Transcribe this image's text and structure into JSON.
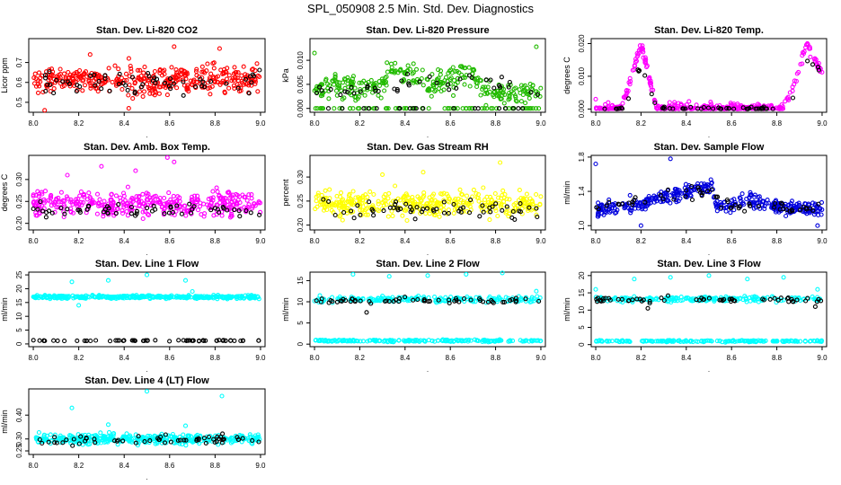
{
  "title": "SPL_050908  2.5 Min. Std. Dev. Diagnostics",
  "colors": {
    "red": "#ff0000",
    "green": "#22bb00",
    "magenta": "#ff00ff",
    "yellow": "#ffff00",
    "blue": "#0000dd",
    "cyan": "#00ffff",
    "black": "#000000"
  },
  "chart_data": [
    {
      "type": "scatter",
      "title": "Stan. Dev. Li-820 CO2",
      "ylabel": "Licor ppm",
      "xlabel": ".",
      "xlim": [
        7.98,
        9.02
      ],
      "ylim": [
        0.45,
        0.82
      ],
      "xticks": [
        "8.0",
        "8.2",
        "8.4",
        "8.6",
        "8.8",
        "9.0"
      ],
      "yticks": [
        {
          "v": 0.5,
          "label": "0.5"
        },
        {
          "v": 0.6,
          "label": "0.6"
        },
        {
          "v": 0.7,
          "label": "0.7"
        }
      ],
      "series": [
        {
          "name": "main",
          "color": "red",
          "pattern": "noise",
          "bands": [
            {
              "from": 0,
              "to": 1,
              "y": 0.61,
              "sd": 0.055
            }
          ],
          "outliers": [
            [
              8.05,
              0.46
            ],
            [
              8.42,
              0.47
            ],
            [
              8.62,
              0.78
            ],
            [
              8.82,
              0.77
            ],
            [
              8.25,
              0.74
            ]
          ]
        },
        {
          "name": "overlay",
          "color": "black",
          "pattern": "noise",
          "bands": [
            {
              "from": 0,
              "to": 1,
              "y": 0.6,
              "sd": 0.04
            }
          ]
        }
      ]
    },
    {
      "type": "scatter",
      "title": "Stan. Dev. Li-820 Pressure",
      "ylabel": "kPa",
      "xlabel": ".",
      "xlim": [
        7.98,
        9.02
      ],
      "ylim": [
        -0.0008,
        0.0145
      ],
      "xticks": [
        "8.0",
        "8.2",
        "8.4",
        "8.6",
        "8.8",
        "9.0"
      ],
      "yticks": [
        {
          "v": 0.0,
          "label": "0.000"
        },
        {
          "v": 0.005,
          "label": "0.005"
        },
        {
          "v": 0.01,
          "label": "0.010"
        }
      ],
      "series": [
        {
          "name": "main",
          "color": "green",
          "pattern": "profile",
          "profile": [
            [
              8.0,
              0.004
            ],
            [
              8.1,
              0.005
            ],
            [
              8.2,
              0.004
            ],
            [
              8.3,
              0.005
            ],
            [
              8.35,
              0.008
            ],
            [
              8.42,
              0.007
            ],
            [
              8.5,
              0.005
            ],
            [
              8.6,
              0.006
            ],
            [
              8.67,
              0.008
            ],
            [
              8.75,
              0.004
            ],
            [
              8.85,
              0.003
            ],
            [
              9.0,
              0.004
            ]
          ],
          "sd": 0.0018,
          "zerofrac": 0.18,
          "outliers": [
            [
              8.0,
              0.0115
            ],
            [
              8.32,
              0.0095
            ],
            [
              8.98,
              0.0128
            ]
          ]
        },
        {
          "name": "overlay",
          "color": "black",
          "pattern": "profile",
          "profile": [
            [
              8.0,
              0.004
            ],
            [
              8.3,
              0.004
            ],
            [
              8.42,
              0.006
            ],
            [
              8.6,
              0.004
            ],
            [
              8.68,
              0.007
            ],
            [
              9.0,
              0.003
            ]
          ],
          "sd": 0.0012,
          "zerofrac": 0.25
        }
      ]
    },
    {
      "type": "scatter",
      "title": "Stan. Dev. Li-820 Temp.",
      "ylabel": "degrees C",
      "xlabel": ".",
      "xlim": [
        7.98,
        9.02
      ],
      "ylim": [
        -0.001,
        0.0215
      ],
      "xticks": [
        "8.0",
        "8.2",
        "8.4",
        "8.6",
        "8.8",
        "9.0"
      ],
      "yticks": [
        {
          "v": 0.0,
          "label": "0.000"
        },
        {
          "v": 0.01,
          "label": "0.010"
        },
        {
          "v": 0.02,
          "label": "0.020"
        }
      ],
      "series": [
        {
          "name": "main",
          "color": "magenta",
          "pattern": "profile",
          "profile": [
            [
              8.0,
              0.0
            ],
            [
              8.1,
              0.0
            ],
            [
              8.13,
              0.003
            ],
            [
              8.2,
              0.02
            ],
            [
              8.27,
              0.0
            ],
            [
              8.83,
              0.0
            ],
            [
              8.88,
              0.008
            ],
            [
              8.93,
              0.02
            ],
            [
              9.0,
              0.011
            ]
          ],
          "sd": 0.0012,
          "outliers": [
            [
              8.0,
              0.003
            ]
          ]
        },
        {
          "name": "overlay",
          "color": "black",
          "pattern": "profile",
          "profile": [
            [
              8.0,
              0.0
            ],
            [
              8.13,
              0.0
            ],
            [
              8.18,
              0.012
            ],
            [
              8.22,
              0.01
            ],
            [
              8.27,
              0.0
            ],
            [
              8.86,
              0.0
            ],
            [
              8.92,
              0.016
            ],
            [
              9.0,
              0.011
            ]
          ],
          "sd": 0.0008
        }
      ]
    },
    {
      "type": "scatter",
      "title": "Stan. Dev. Amb. Box Temp.",
      "ylabel": "degrees C",
      "xlabel": ".",
      "xlim": [
        7.98,
        9.02
      ],
      "ylim": [
        0.185,
        0.355
      ],
      "xticks": [
        "8.0",
        "8.2",
        "8.4",
        "8.6",
        "8.8",
        "9.0"
      ],
      "yticks": [
        {
          "v": 0.2,
          "label": "0.20"
        },
        {
          "v": 0.25,
          "label": "0.25"
        },
        {
          "v": 0.3,
          "label": "0.30"
        }
      ],
      "series": [
        {
          "name": "main",
          "color": "magenta",
          "pattern": "noise",
          "bands": [
            {
              "from": 0,
              "to": 1,
              "y": 0.245,
              "sd": 0.022
            }
          ],
          "outliers": [
            [
              8.3,
              0.33
            ],
            [
              8.59,
              0.35
            ],
            [
              8.45,
              0.32
            ],
            [
              8.62,
              0.34
            ],
            [
              8.15,
              0.31
            ]
          ]
        },
        {
          "name": "overlay",
          "color": "black",
          "pattern": "noise",
          "bands": [
            {
              "from": 0,
              "to": 1,
              "y": 0.23,
              "sd": 0.012
            }
          ]
        }
      ]
    },
    {
      "type": "scatter",
      "title": "Stan. Dev. Gas Stream RH",
      "ylabel": "percent",
      "xlabel": ".",
      "xlim": [
        7.98,
        9.02
      ],
      "ylim": [
        0.19,
        0.345
      ],
      "xticks": [
        "8.0",
        "8.2",
        "8.4",
        "8.6",
        "8.8",
        "9.0"
      ],
      "yticks": [
        {
          "v": 0.2,
          "label": "0.20"
        },
        {
          "v": 0.25,
          "label": "0.25"
        },
        {
          "v": 0.3,
          "label": "0.30"
        }
      ],
      "series": [
        {
          "name": "main",
          "color": "yellow",
          "pattern": "noise",
          "bands": [
            {
              "from": 0,
              "to": 1,
              "y": 0.245,
              "sd": 0.02
            }
          ],
          "outliers": [
            [
              8.82,
              0.33
            ],
            [
              8.48,
              0.31
            ],
            [
              8.3,
              0.305
            ]
          ]
        },
        {
          "name": "overlay",
          "color": "black",
          "pattern": "noise",
          "bands": [
            {
              "from": 0,
              "to": 1,
              "y": 0.235,
              "sd": 0.014
            }
          ]
        }
      ]
    },
    {
      "type": "scatter",
      "title": "Stan. Dev. Sample Flow",
      "ylabel": "ml/min",
      "xlabel": ".",
      "xlim": [
        7.98,
        9.02
      ],
      "ylim": [
        0.95,
        1.82
      ],
      "xticks": [
        "8.0",
        "8.2",
        "8.4",
        "8.6",
        "8.8",
        "9.0"
      ],
      "yticks": [
        {
          "v": 1.0,
          "label": "1.0"
        },
        {
          "v": 1.4,
          "label": "1.4"
        },
        {
          "v": 1.8,
          "label": "1.8"
        }
      ],
      "series": [
        {
          "name": "main",
          "color": "blue",
          "pattern": "profile",
          "profile": [
            [
              8.0,
              1.18
            ],
            [
              8.2,
              1.25
            ],
            [
              8.35,
              1.38
            ],
            [
              8.52,
              1.45
            ],
            [
              8.53,
              1.22
            ],
            [
              8.7,
              1.3
            ],
            [
              8.8,
              1.22
            ],
            [
              9.0,
              1.18
            ]
          ],
          "sd": 0.07,
          "outliers": [
            [
              8.0,
              1.72
            ],
            [
              8.33,
              1.78
            ],
            [
              8.2,
              1.0
            ],
            [
              8.98,
              1.0
            ]
          ]
        },
        {
          "name": "overlay",
          "color": "black",
          "pattern": "profile",
          "profile": [
            [
              8.0,
              1.2
            ],
            [
              8.35,
              1.35
            ],
            [
              8.52,
              1.42
            ],
            [
              8.55,
              1.25
            ],
            [
              9.0,
              1.2
            ]
          ],
          "sd": 0.05
        }
      ]
    },
    {
      "type": "scatter",
      "title": "Stan. Dev. Line 1 Flow",
      "ylabel": "ml/min",
      "xlabel": ".",
      "xlim": [
        7.98,
        9.02
      ],
      "ylim": [
        -1.0,
        26.0
      ],
      "xticks": [
        "8.0",
        "8.2",
        "8.4",
        "8.6",
        "8.8",
        "9.0"
      ],
      "yticks": [
        {
          "v": 0,
          "label": "0"
        },
        {
          "v": 5,
          "label": "5"
        },
        {
          "v": 10,
          "label": "10"
        },
        {
          "v": 15,
          "label": "15"
        },
        {
          "v": 20,
          "label": "20"
        },
        {
          "v": 25,
          "label": "25"
        }
      ],
      "series": [
        {
          "name": "main",
          "color": "cyan",
          "pattern": "noise",
          "bands": [
            {
              "from": 0,
              "to": 1,
              "y": 17.0,
              "sd": 0.45
            }
          ],
          "outliers": [
            [
              8.5,
              25.0
            ],
            [
              8.17,
              22.5
            ],
            [
              8.33,
              23.0
            ],
            [
              8.67,
              23.0
            ],
            [
              8.2,
              14.0
            ],
            [
              8.7,
              19.0
            ]
          ]
        },
        {
          "name": "overlay",
          "color": "black",
          "pattern": "noise",
          "bands": [
            {
              "from": 0,
              "to": 1,
              "y": 1.2,
              "sd": 0.12
            }
          ]
        }
      ]
    },
    {
      "type": "scatter",
      "title": "Stan. Dev. Line 2 Flow",
      "ylabel": "ml/min",
      "xlabel": ".",
      "xlim": [
        7.98,
        9.02
      ],
      "ylim": [
        -0.6,
        17.0
      ],
      "xticks": [
        "8.0",
        "8.2",
        "8.4",
        "8.6",
        "8.8",
        "9.0"
      ],
      "yticks": [
        {
          "v": 0,
          "label": "0"
        },
        {
          "v": 5,
          "label": "5"
        },
        {
          "v": 10,
          "label": "10"
        },
        {
          "v": 15,
          "label": "15"
        }
      ],
      "series": [
        {
          "name": "main",
          "color": "cyan",
          "pattern": "noise",
          "bands": [
            {
              "from": 0,
              "to": 1,
              "y": 10.6,
              "sd": 0.55
            },
            {
              "from": 0,
              "to": 1,
              "y": 0.8,
              "sd": 0.18
            }
          ],
          "outliers": [
            [
              8.17,
              16.5
            ],
            [
              8.33,
              16.0
            ],
            [
              8.5,
              16.2
            ],
            [
              8.67,
              16.5
            ],
            [
              8.83,
              16.8
            ],
            [
              8.98,
              12.5
            ]
          ]
        },
        {
          "name": "overlay",
          "color": "black",
          "pattern": "noise",
          "bands": [
            {
              "from": 0,
              "to": 1,
              "y": 10.3,
              "sd": 0.6
            }
          ],
          "outliers": [
            [
              8.23,
              7.5
            ]
          ]
        }
      ]
    },
    {
      "type": "scatter",
      "title": "Stan. Dev. Line 3 Flow",
      "ylabel": "ml/min",
      "xlabel": ".",
      "xlim": [
        7.98,
        9.02
      ],
      "ylim": [
        -0.6,
        21.0
      ],
      "xticks": [
        "8.0",
        "8.2",
        "8.4",
        "8.6",
        "8.8",
        "9.0"
      ],
      "yticks": [
        {
          "v": 0,
          "label": "0"
        },
        {
          "v": 5,
          "label": "5"
        },
        {
          "v": 10,
          "label": "10"
        },
        {
          "v": 15,
          "label": "15"
        },
        {
          "v": 20,
          "label": "20"
        }
      ],
      "series": [
        {
          "name": "main",
          "color": "cyan",
          "pattern": "noise",
          "bands": [
            {
              "from": 0,
              "to": 1,
              "y": 13.2,
              "sd": 0.6
            },
            {
              "from": 0,
              "to": 1,
              "y": 1.0,
              "sd": 0.18
            }
          ],
          "outliers": [
            [
              8.0,
              16.0
            ],
            [
              8.17,
              19.0
            ],
            [
              8.33,
              19.5
            ],
            [
              8.5,
              20.0
            ],
            [
              8.67,
              19.0
            ],
            [
              8.83,
              19.5
            ],
            [
              8.98,
              16.0
            ]
          ]
        },
        {
          "name": "overlay",
          "color": "black",
          "pattern": "noise",
          "bands": [
            {
              "from": 0,
              "to": 1,
              "y": 13.0,
              "sd": 0.6
            }
          ],
          "outliers": [
            [
              8.23,
              10.5
            ],
            [
              8.97,
              11.0
            ]
          ]
        }
      ]
    },
    {
      "type": "scatter",
      "title": "Stan. Dev. Line 4 (LT) Flow",
      "ylabel": "ml/min",
      "xlabel": ".",
      "xlim": [
        7.98,
        9.02
      ],
      "ylim": [
        0.235,
        0.51
      ],
      "xticks": [
        "8.0",
        "8.2",
        "8.4",
        "8.6",
        "8.8",
        "9.0"
      ],
      "yticks": [
        {
          "v": 0.25,
          "label": "0.25"
        },
        {
          "v": 0.3,
          "label": "0.30"
        },
        {
          "v": 0.4,
          "label": "0.40"
        }
      ],
      "series": [
        {
          "name": "main",
          "color": "cyan",
          "pattern": "noise",
          "bands": [
            {
              "from": 0,
              "to": 1,
              "y": 0.3,
              "sd": 0.016
            }
          ],
          "outliers": [
            [
              8.5,
              0.5
            ],
            [
              8.17,
              0.43
            ],
            [
              8.83,
              0.48
            ],
            [
              8.33,
              0.36
            ],
            [
              8.67,
              0.355
            ]
          ]
        },
        {
          "name": "overlay",
          "color": "black",
          "pattern": "noise",
          "bands": [
            {
              "from": 0,
              "to": 1,
              "y": 0.295,
              "sd": 0.013
            }
          ]
        }
      ]
    }
  ]
}
